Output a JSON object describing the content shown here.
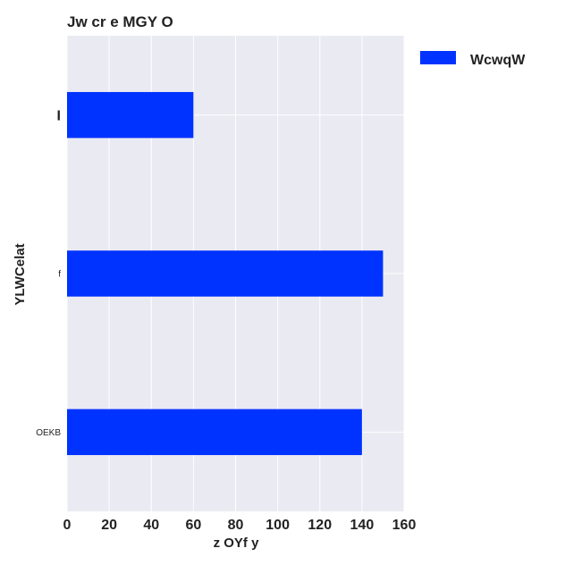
{
  "chart_data": {
    "type": "bar",
    "orientation": "horizontal",
    "title": "Jw cr e MGY O",
    "xlabel": "z OYf y",
    "ylabel": "YLWCelat",
    "categories": [
      "I",
      "f",
      "OEKB"
    ],
    "series": [
      {
        "name": "WcwqW",
        "values": [
          60,
          150,
          140
        ]
      }
    ],
    "xlim": [
      0,
      160
    ],
    "xticks": [
      0,
      20,
      40,
      60,
      80,
      100,
      120,
      140,
      160
    ],
    "grid": true,
    "legend": "outside-top-right",
    "colors": {
      "bar": "#0033ff",
      "plot_bg": "#eaeaf2",
      "grid": "#ffffff"
    }
  }
}
